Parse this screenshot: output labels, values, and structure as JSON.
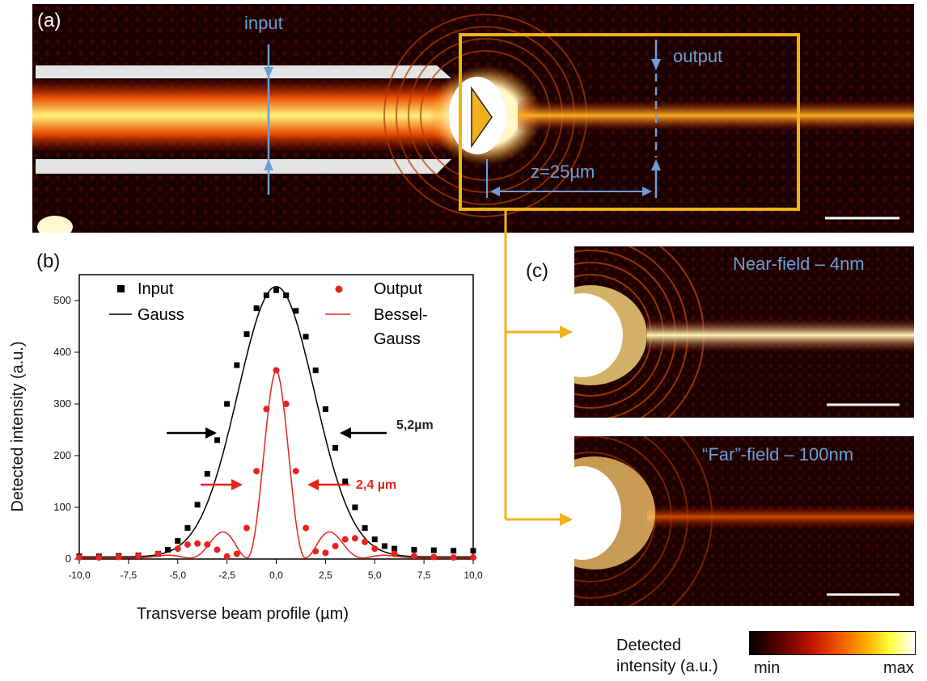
{
  "panel_a": {
    "label": "(a)",
    "input_label": "input",
    "output_label": "output",
    "distance_label": "z=25µm"
  },
  "panel_b": {
    "label": "(b)",
    "legend": {
      "input": "Input",
      "gauss": "Gauss",
      "output": "Output",
      "bessel": "Bessel-",
      "bessel2": "Gauss"
    },
    "annotations": {
      "width_input": "5,2µm",
      "width_output": "2,4 µm"
    }
  },
  "panel_c": {
    "label": "(c)",
    "near_title": "Near-field – 4nm",
    "far_title": "“Far”-field – 100nm"
  },
  "colorbar": {
    "title_line1": "Detected",
    "title_line2": "intensity  (a.u.)",
    "min": "min",
    "max": "max"
  },
  "colors": {
    "accent": "#f0b11a",
    "blue": "#6c9fd8",
    "red": "#e8231d"
  },
  "chart_data": {
    "type": "scatter",
    "xlabel": "Transverse  beam profile (µm)",
    "ylabel": "Detected intensity  (a.u.)",
    "xlim": [
      -10,
      10
    ],
    "ylim": [
      0,
      550
    ],
    "xticks": [
      "-10,0",
      "-7,5",
      "-5,0",
      "-2,5",
      "0,0",
      "2,5",
      "5,0",
      "7,5",
      "10,0"
    ],
    "yticks": [
      "0",
      "100",
      "200",
      "300",
      "400",
      "500"
    ],
    "series": [
      {
        "name": "Input",
        "kind": "points",
        "color": "#000000",
        "x": [
          -10,
          -9,
          -8,
          -7,
          -6,
          -5.5,
          -5,
          -4.5,
          -4,
          -3.5,
          -3,
          -2.5,
          -2,
          -1.5,
          -1,
          -0.5,
          0,
          0.5,
          1,
          1.5,
          2,
          2.5,
          3,
          3.5,
          4,
          4.5,
          5,
          5.5,
          6,
          7,
          8,
          9,
          10
        ],
        "y": [
          5,
          5,
          6,
          7,
          10,
          18,
          35,
          60,
          105,
          165,
          230,
          300,
          375,
          435,
          485,
          510,
          520,
          510,
          480,
          430,
          365,
          290,
          215,
          150,
          100,
          60,
          38,
          25,
          20,
          18,
          17,
          16,
          16
        ]
      },
      {
        "name": "Gauss",
        "kind": "line",
        "color": "#000000"
      },
      {
        "name": "Output",
        "kind": "points",
        "color": "#e8231d",
        "x": [
          -10,
          -9,
          -8,
          -7,
          -6,
          -5,
          -4.5,
          -4,
          -3.5,
          -3,
          -2.5,
          -2,
          -1.5,
          -1,
          -0.5,
          0,
          0.5,
          1,
          1.5,
          2,
          2.5,
          3,
          3.5,
          4,
          4.5,
          5,
          6,
          7,
          8,
          9,
          10
        ],
        "y": [
          3,
          3,
          4,
          6,
          10,
          20,
          28,
          30,
          28,
          18,
          5,
          10,
          60,
          170,
          290,
          365,
          300,
          170,
          60,
          15,
          12,
          25,
          38,
          40,
          33,
          20,
          10,
          6,
          4,
          3,
          3
        ]
      },
      {
        "name": "Bessel-Gauss",
        "kind": "line",
        "color": "#e8231d"
      }
    ]
  }
}
